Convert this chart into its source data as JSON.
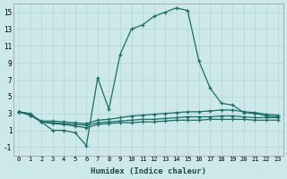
{
  "xlabel": "Humidex (Indice chaleur)",
  "bg_color": "#cde8eb",
  "grid_color": "#b8d5d8",
  "line_color": "#1a6e65",
  "xlim": [
    -0.5,
    23.5
  ],
  "ylim": [
    -2,
    16
  ],
  "xticks": [
    0,
    1,
    2,
    3,
    4,
    5,
    6,
    7,
    8,
    9,
    10,
    11,
    12,
    13,
    14,
    15,
    16,
    17,
    18,
    19,
    20,
    21,
    22,
    23
  ],
  "yticks": [
    -1,
    1,
    3,
    5,
    7,
    9,
    11,
    13,
    15
  ],
  "series": [
    [
      3.2,
      3.0,
      2.0,
      1.0,
      1.0,
      0.7,
      -0.8,
      7.2,
      3.5,
      10.0,
      13.0,
      13.5,
      14.5,
      15.0,
      15.5,
      15.2,
      9.2,
      6.0,
      4.2,
      4.0,
      3.1,
      3.0,
      2.7,
      2.6
    ],
    [
      3.2,
      2.8,
      2.1,
      2.1,
      2.0,
      1.9,
      1.8,
      2.2,
      2.3,
      2.5,
      2.7,
      2.8,
      2.9,
      3.0,
      3.1,
      3.2,
      3.2,
      3.3,
      3.4,
      3.4,
      3.2,
      3.1,
      2.9,
      2.8
    ],
    [
      3.2,
      2.8,
      2.0,
      1.9,
      1.8,
      1.7,
      1.6,
      1.9,
      2.0,
      2.1,
      2.2,
      2.3,
      2.3,
      2.4,
      2.5,
      2.6,
      2.6,
      2.6,
      2.7,
      2.7,
      2.6,
      2.5,
      2.5,
      2.5
    ],
    [
      3.2,
      2.8,
      2.0,
      1.8,
      1.7,
      1.5,
      1.3,
      1.7,
      1.8,
      1.9,
      1.9,
      2.0,
      2.0,
      2.1,
      2.2,
      2.2,
      2.2,
      2.3,
      2.3,
      2.3,
      2.3,
      2.2,
      2.2,
      2.2
    ]
  ]
}
